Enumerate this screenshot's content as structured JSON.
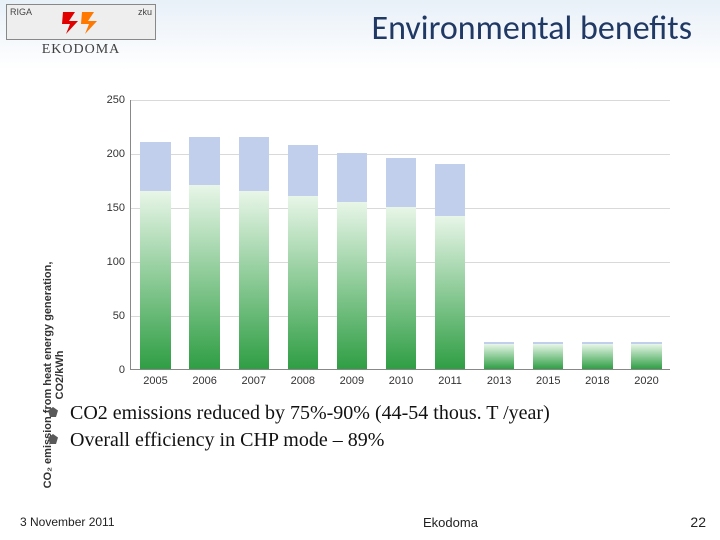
{
  "header": {
    "title": "Environmental benefits",
    "title_color": "#203864",
    "title_fontsize": 34,
    "band_gradient_top": "#e8f0f8",
    "band_gradient_bottom": "#ffffff"
  },
  "logo": {
    "top_left_text": "RIGA",
    "top_right_text": "zku",
    "bottom_text": "EKODOMA",
    "bolt_color_1": "#e00000",
    "bolt_color_2": "#ff7800"
  },
  "chart": {
    "type": "bar",
    "ylabel": "CO₂ emission from heat energy generation,\nCO2/kWh",
    "ylim": [
      0,
      250
    ],
    "ytick_step": 50,
    "yticks": [
      0,
      50,
      100,
      150,
      200,
      250
    ],
    "categories": [
      "2005",
      "2006",
      "2007",
      "2008",
      "2009",
      "2010",
      "2011",
      "2013",
      "2015",
      "2018",
      "2020"
    ],
    "back_values": [
      210,
      215,
      215,
      207,
      200,
      195,
      190,
      25,
      25,
      25,
      25
    ],
    "front_values": [
      165,
      170,
      165,
      160,
      155,
      150,
      142,
      23,
      23,
      23,
      23
    ],
    "back_bar_color": "#c2cfec",
    "front_gradient_top": "#e8f6e8",
    "front_gradient_bottom": "#2f9e44",
    "grid_color": "#d9d9d9",
    "axis_color": "#888888",
    "tick_fontsize": 11,
    "tick_color": "#333333",
    "bar_width_ratio": 0.62
  },
  "bullets": [
    "CO2 emissions reduced by 75%-90% (44-54 thous. T /year)",
    "Overall efficiency in CHP mode – 89%"
  ],
  "footer": {
    "date": "3 November 2011",
    "org": "Ekodoma",
    "page": "22"
  }
}
